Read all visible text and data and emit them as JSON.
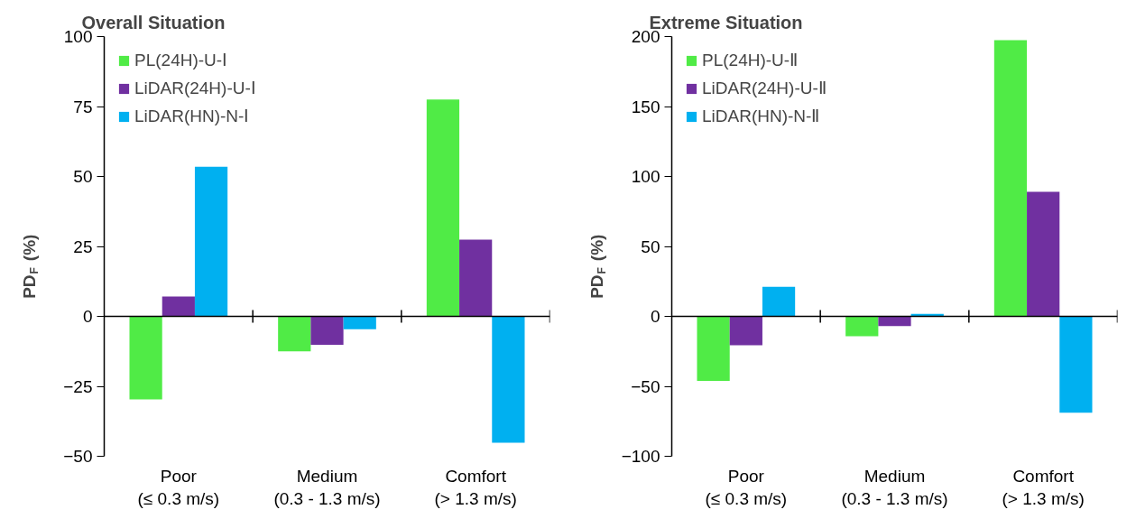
{
  "chart_data": [
    {
      "type": "bar",
      "title": "Overall Situation",
      "ylabel": "PD$_{F}$ (%)",
      "categories": [
        "Poor\n(≤ 0.3 m/s)",
        "Medium\n(0.3 - 1.3 m/s)",
        "Comfort\n(> 1.3 m/s)"
      ],
      "series": [
        {
          "name": "PL(24H)-U-Ⅰ",
          "color": "#50eb46",
          "values": [
            -29.7,
            -12.5,
            77.5
          ]
        },
        {
          "name": "LiDAR(24H)-U-Ⅰ",
          "color": "#7030a0",
          "values": [
            7.1,
            -10.2,
            27.4
          ]
        },
        {
          "name": "LiDAR(HN)-N-Ⅰ",
          "color": "#00b0f0",
          "values": [
            53.5,
            -4.6,
            -45.2
          ]
        }
      ],
      "ylim": [
        -50,
        100
      ],
      "yticks": [
        -50,
        -25,
        0,
        25,
        50,
        75,
        100
      ],
      "legend": "top left"
    },
    {
      "type": "bar",
      "title": "Extreme Situation",
      "ylabel": "PD$_{F}$ (%)",
      "categories": [
        "Poor\n(≤ 0.3 m/s)",
        "Medium\n(0.3 - 1.3 m/s)",
        "Comfort\n(> 1.3 m/s)"
      ],
      "series": [
        {
          "name": "PL(24H)-U-Ⅱ",
          "color": "#50eb46",
          "values": [
            -46.2,
            -14.2,
            197.4
          ]
        },
        {
          "name": "LiDAR(24H)-U-Ⅱ",
          "color": "#7030a0",
          "values": [
            -20.6,
            -7.0,
            89.0
          ]
        },
        {
          "name": "LiDAR(HN)-N-Ⅱ",
          "color": "#00b0f0",
          "values": [
            21.2,
            1.8,
            -68.9
          ]
        }
      ],
      "ylim": [
        -100,
        200
      ],
      "yticks": [
        -100,
        -50,
        0,
        50,
        100,
        150,
        200
      ],
      "legend": "top left"
    }
  ]
}
